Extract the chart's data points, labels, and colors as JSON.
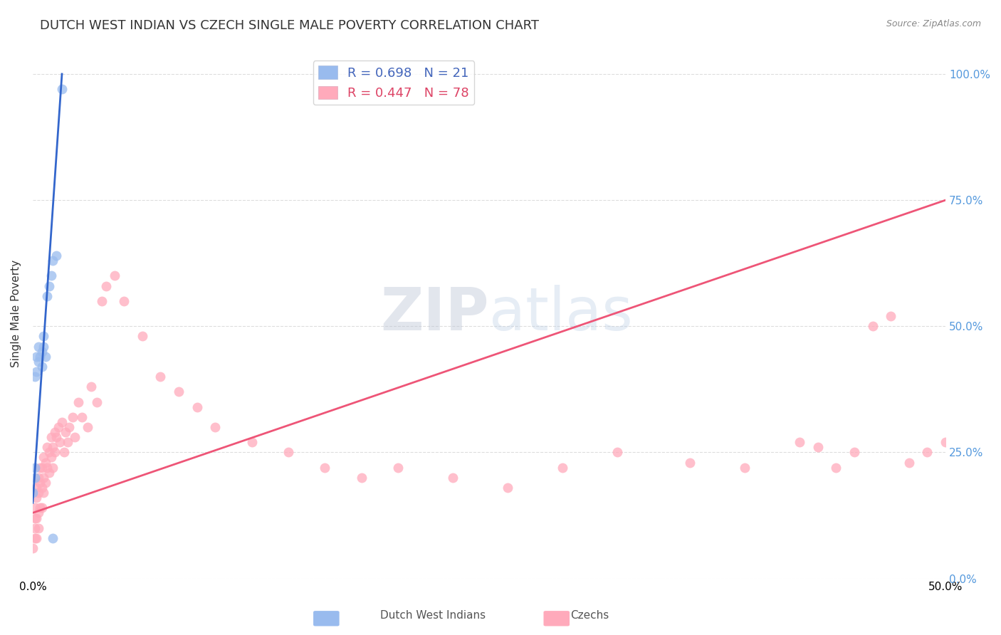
{
  "title": "DUTCH WEST INDIAN VS CZECH SINGLE MALE POVERTY CORRELATION CHART",
  "source": "Source: ZipAtlas.com",
  "ylabel": "Single Male Poverty",
  "xlim": [
    0.0,
    0.5
  ],
  "ylim": [
    0.0,
    1.05
  ],
  "legend1_label": "R = 0.698   N = 21",
  "legend2_label": "R = 0.447   N = 78",
  "watermark_text": "ZIPatlas",
  "background_color": "#ffffff",
  "grid_color": "#dddddd",
  "title_fontsize": 13,
  "axis_label_fontsize": 11,
  "tick_fontsize": 11,
  "right_tick_color": "#5599dd",
  "blue_line_color": "#3366cc",
  "pink_line_color": "#ee5577",
  "blue_dot_color": "#99bbee",
  "pink_dot_color": "#ffaabb",
  "dwi_x": [
    0.0,
    0.001,
    0.001,
    0.001,
    0.002,
    0.002,
    0.003,
    0.003,
    0.004,
    0.005,
    0.005,
    0.006,
    0.006,
    0.007,
    0.008,
    0.009,
    0.01,
    0.011,
    0.013,
    0.016,
    0.011
  ],
  "dwi_y": [
    0.17,
    0.2,
    0.22,
    0.4,
    0.41,
    0.44,
    0.43,
    0.46,
    0.44,
    0.42,
    0.45,
    0.46,
    0.48,
    0.44,
    0.56,
    0.58,
    0.6,
    0.63,
    0.64,
    0.97,
    0.08
  ],
  "cz_x": [
    0.0,
    0.001,
    0.001,
    0.001,
    0.001,
    0.002,
    0.002,
    0.002,
    0.002,
    0.003,
    0.003,
    0.003,
    0.003,
    0.004,
    0.004,
    0.004,
    0.005,
    0.005,
    0.005,
    0.006,
    0.006,
    0.006,
    0.007,
    0.007,
    0.008,
    0.008,
    0.009,
    0.009,
    0.01,
    0.01,
    0.011,
    0.011,
    0.012,
    0.012,
    0.013,
    0.014,
    0.015,
    0.016,
    0.017,
    0.018,
    0.019,
    0.02,
    0.022,
    0.023,
    0.025,
    0.027,
    0.03,
    0.032,
    0.035,
    0.038,
    0.04,
    0.045,
    0.05,
    0.06,
    0.07,
    0.08,
    0.09,
    0.1,
    0.12,
    0.14,
    0.16,
    0.18,
    0.2,
    0.23,
    0.26,
    0.29,
    0.32,
    0.36,
    0.39,
    0.42,
    0.43,
    0.44,
    0.45,
    0.46,
    0.47,
    0.48,
    0.49,
    0.5
  ],
  "cz_y": [
    0.06,
    0.08,
    0.1,
    0.12,
    0.14,
    0.08,
    0.12,
    0.16,
    0.18,
    0.1,
    0.13,
    0.17,
    0.2,
    0.14,
    0.19,
    0.22,
    0.14,
    0.18,
    0.22,
    0.17,
    0.2,
    0.24,
    0.19,
    0.23,
    0.22,
    0.26,
    0.21,
    0.25,
    0.24,
    0.28,
    0.22,
    0.26,
    0.25,
    0.29,
    0.28,
    0.3,
    0.27,
    0.31,
    0.25,
    0.29,
    0.27,
    0.3,
    0.32,
    0.28,
    0.35,
    0.32,
    0.3,
    0.38,
    0.35,
    0.55,
    0.58,
    0.6,
    0.55,
    0.48,
    0.4,
    0.37,
    0.34,
    0.3,
    0.27,
    0.25,
    0.22,
    0.2,
    0.22,
    0.2,
    0.18,
    0.22,
    0.25,
    0.23,
    0.22,
    0.27,
    0.26,
    0.22,
    0.25,
    0.5,
    0.52,
    0.23,
    0.25,
    0.27
  ]
}
